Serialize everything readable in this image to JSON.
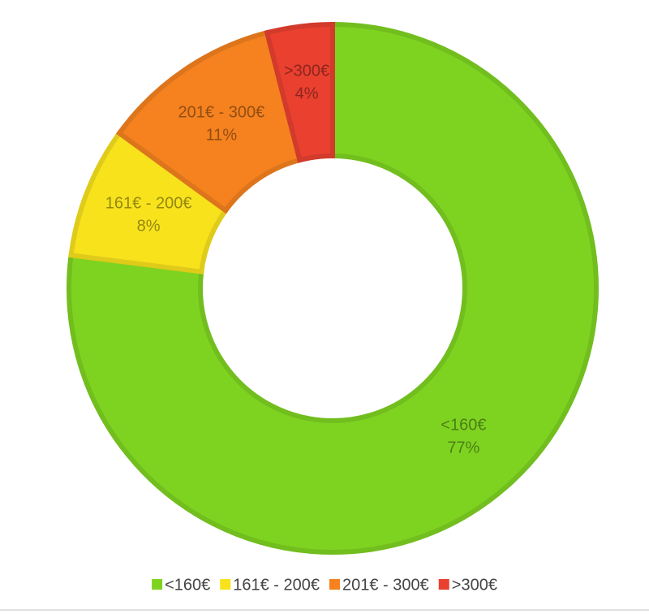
{
  "chart_data": {
    "type": "donut",
    "categories": [
      "<160€",
      "161€ - 200€",
      "201€ - 300€",
      ">300€"
    ],
    "values": [
      77,
      8,
      11,
      4
    ],
    "value_labels": [
      "77%",
      "8%",
      "11%",
      "4%"
    ],
    "colors": [
      "#7ed321",
      "#f8e21c",
      "#f5821f",
      "#e94030"
    ],
    "legend": "bottom"
  }
}
